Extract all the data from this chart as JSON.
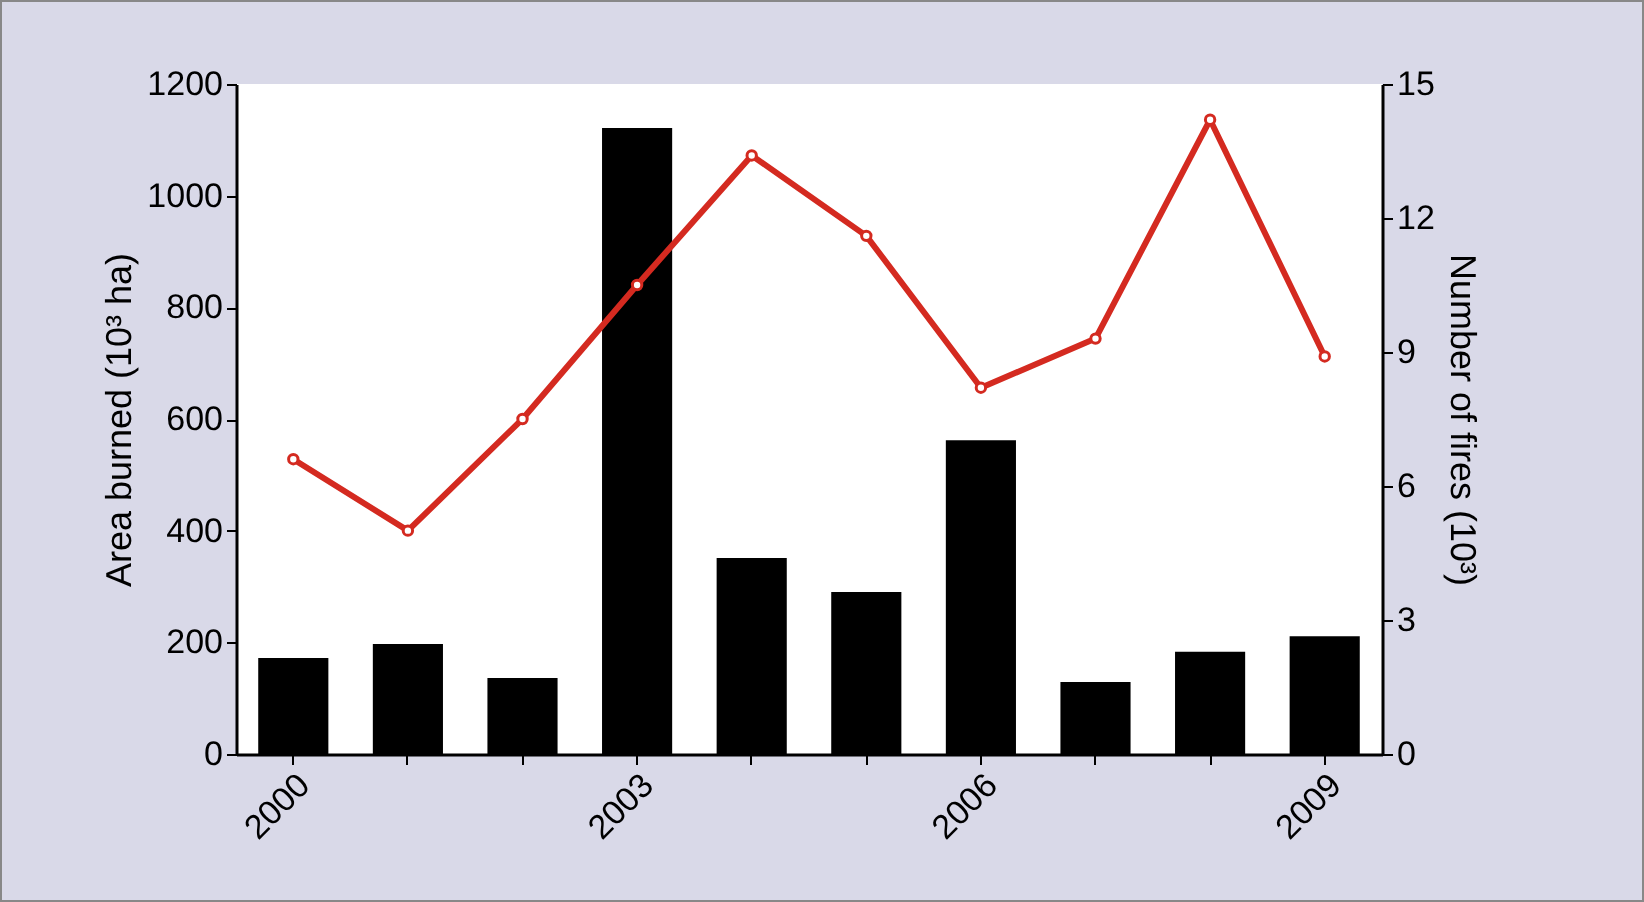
{
  "chart_data": {
    "type": "bar",
    "ylabel": "Area burned (10³ ha)",
    "y2label": "Number of fires (10³)",
    "categories": [
      "2000",
      null,
      null,
      "2003",
      null,
      null,
      "2006",
      null,
      null,
      "2009"
    ],
    "series": [
      {
        "color": "#000000",
        "values": [
          172,
          197,
          136,
          1121,
          351,
          290,
          562,
          129,
          183,
          211
        ]
      },
      {
        "type": "line",
        "axis": "y2",
        "color": "#d42a20",
        "values": [
          6.6,
          5.0,
          7.5,
          10.5,
          13.4,
          11.6,
          8.2,
          9.3,
          14.2,
          8.9
        ]
      }
    ],
    "ylim": [
      0,
      1200
    ],
    "yticks": [
      0,
      200,
      400,
      600,
      800,
      1000,
      1200
    ],
    "y2lim": [
      0,
      15
    ],
    "y2ticks": [
      0,
      3,
      6,
      9,
      12,
      15
    ],
    "grid": false,
    "marker": "circle",
    "line_style": "solid"
  }
}
